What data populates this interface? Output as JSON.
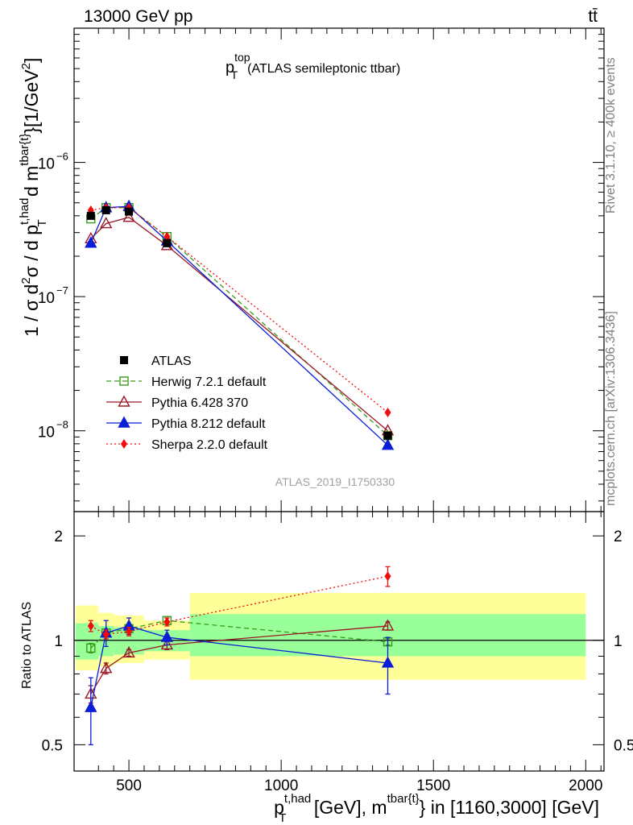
{
  "header": {
    "energy": "13000 GeV pp",
    "process": "tt̄"
  },
  "title": {
    "p": "p",
    "sup": "top",
    "sub": "T",
    "text": "(ATLAS semileptonic ttbar)"
  },
  "side_labels": {
    "rivet": "Rivet 3.1.10, ≥ 400k events",
    "mcplots": "mcplots.cern.ch [arXiv:1306.3436]"
  },
  "analysis_id": "ATLAS_2019_I1750330",
  "ylabel_main": {
    "a": "1 / σ d",
    "b": "2",
    "c": "σ / d p",
    "d": "t,had",
    "e": "T",
    "f": " d m",
    "g": "tbar{t}",
    "h": "}[1/GeV",
    "i": "2",
    "j": "]"
  },
  "ylabel_ratio": "Ratio to ATLAS",
  "xlabel": {
    "a": "p",
    "b": "t,had",
    "c": "T",
    "d": " [GeV], m",
    "e": "tbar{t}",
    "f": "} in [1160,3000] [GeV]"
  },
  "colors": {
    "data": "#000000",
    "herwig": "#3a9a1d",
    "pythia6": "#9a1826",
    "pythia8": "#0a1ed6",
    "sherpa": "#f20d0d",
    "band_inner": "#99ff99",
    "band_outer": "#ffff99"
  },
  "chart_data": {
    "type": "line",
    "main": {
      "yscale": "log",
      "xlim": [
        320,
        2060
      ],
      "ylim": [
        2.5e-09,
        1e-05
      ],
      "yticks": [
        1e-08,
        1e-07,
        1e-06
      ],
      "ytick_labels": [
        "10",
        "10",
        "10"
      ],
      "ytick_exponents": [
        "−8",
        "−7",
        "−6"
      ]
    },
    "ratio": {
      "yscale": "log",
      "xlim": [
        320,
        2060
      ],
      "ylim": [
        0.42,
        2.35
      ],
      "yticks": [
        0.5,
        1,
        2
      ],
      "ytick_labels": [
        "0.5",
        "1",
        "2"
      ]
    },
    "xticks": [
      500,
      1000,
      1500,
      2000
    ],
    "xtick_labels": [
      "500",
      "1000",
      "1500",
      "2000"
    ],
    "data_bins": [
      {
        "x": 375,
        "lo": 325,
        "hi": 400,
        "y": 4e-07,
        "band_inner": [
          0.88,
          1.12
        ],
        "band_outer": [
          0.82,
          1.26
        ]
      },
      {
        "x": 425,
        "lo": 400,
        "hi": 450,
        "y": 4.4e-07,
        "band_inner": [
          0.9,
          1.1
        ],
        "band_outer": [
          0.84,
          1.2
        ]
      },
      {
        "x": 500,
        "lo": 450,
        "hi": 550,
        "y": 4.3e-07,
        "band_inner": [
          0.91,
          1.09
        ],
        "band_outer": [
          0.86,
          1.18
        ]
      },
      {
        "x": 625,
        "lo": 550,
        "hi": 700,
        "y": 2.5e-07,
        "band_inner": [
          0.93,
          1.07
        ],
        "band_outer": [
          0.88,
          1.14
        ]
      },
      {
        "x": 1350,
        "lo": 700,
        "hi": 2000,
        "y": 9.2e-09,
        "band_inner": [
          0.9,
          1.19
        ],
        "band_outer": [
          0.77,
          1.37
        ]
      }
    ],
    "series": [
      {
        "name": "ATLAS",
        "key": "data",
        "marker": "square-filled",
        "dash": "none",
        "x": [
          375,
          425,
          500,
          625,
          1350
        ],
        "y": [
          4e-07,
          4.4e-07,
          4.3e-07,
          2.5e-07,
          9.2e-09
        ],
        "ratio": [
          1,
          1,
          1,
          1,
          1
        ],
        "ratio_err": [
          0,
          0,
          0,
          0,
          0
        ]
      },
      {
        "name": "Herwig 7.2.1 default",
        "key": "herwig",
        "marker": "square-open",
        "dash": "6,4",
        "x": [
          375,
          425,
          500,
          625,
          1350
        ],
        "y": [
          3.8e-07,
          4.6e-07,
          4.6e-07,
          2.8e-07,
          9.2e-09
        ],
        "ratio": [
          0.95,
          1.05,
          1.08,
          1.14,
          0.99
        ],
        "ratio_err": [
          0.03,
          0.02,
          0.02,
          0.02,
          0.02
        ]
      },
      {
        "name": "Pythia 6.428 370",
        "key": "pythia6",
        "marker": "triangle-open",
        "dash": "none",
        "x": [
          375,
          425,
          500,
          625,
          1350
        ],
        "y": [
          2.7e-07,
          3.5e-07,
          3.9e-07,
          2.4e-07,
          1e-08
        ],
        "ratio": [
          0.7,
          0.83,
          0.92,
          0.97,
          1.1
        ],
        "ratio_err": [
          0.04,
          0.03,
          0.02,
          0.03,
          0.03
        ]
      },
      {
        "name": "Pythia 8.212 default",
        "key": "pythia8",
        "marker": "triangle-filled",
        "dash": "none",
        "x": [
          375,
          425,
          500,
          625,
          1350
        ],
        "y": [
          2.5e-07,
          4.6e-07,
          4.7e-07,
          2.6e-07,
          7.8e-09
        ],
        "ratio": [
          0.64,
          1.05,
          1.1,
          1.02,
          0.86
        ],
        "ratio_err": [
          0.14,
          0.09,
          0.06,
          0.05,
          0.16
        ]
      },
      {
        "name": "Sherpa 2.2.0 default",
        "key": "sherpa",
        "marker": "diamond-filled",
        "dash": "2,3",
        "x": [
          375,
          425,
          500,
          625,
          1350
        ],
        "y": [
          4.4e-07,
          4.6e-07,
          4.6e-07,
          2.8e-07,
          1.37e-08
        ],
        "ratio": [
          1.1,
          1.04,
          1.06,
          1.13,
          1.53
        ],
        "ratio_err": [
          0.04,
          0.03,
          0.03,
          0.03,
          0.1
        ]
      }
    ]
  }
}
